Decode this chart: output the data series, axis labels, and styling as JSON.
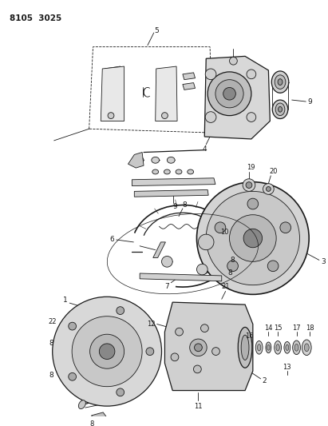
{
  "title": "8105  3025",
  "bg": "#ffffff",
  "lc": "#1a1a1a",
  "figsize": [
    4.11,
    5.33
  ],
  "dpi": 100
}
